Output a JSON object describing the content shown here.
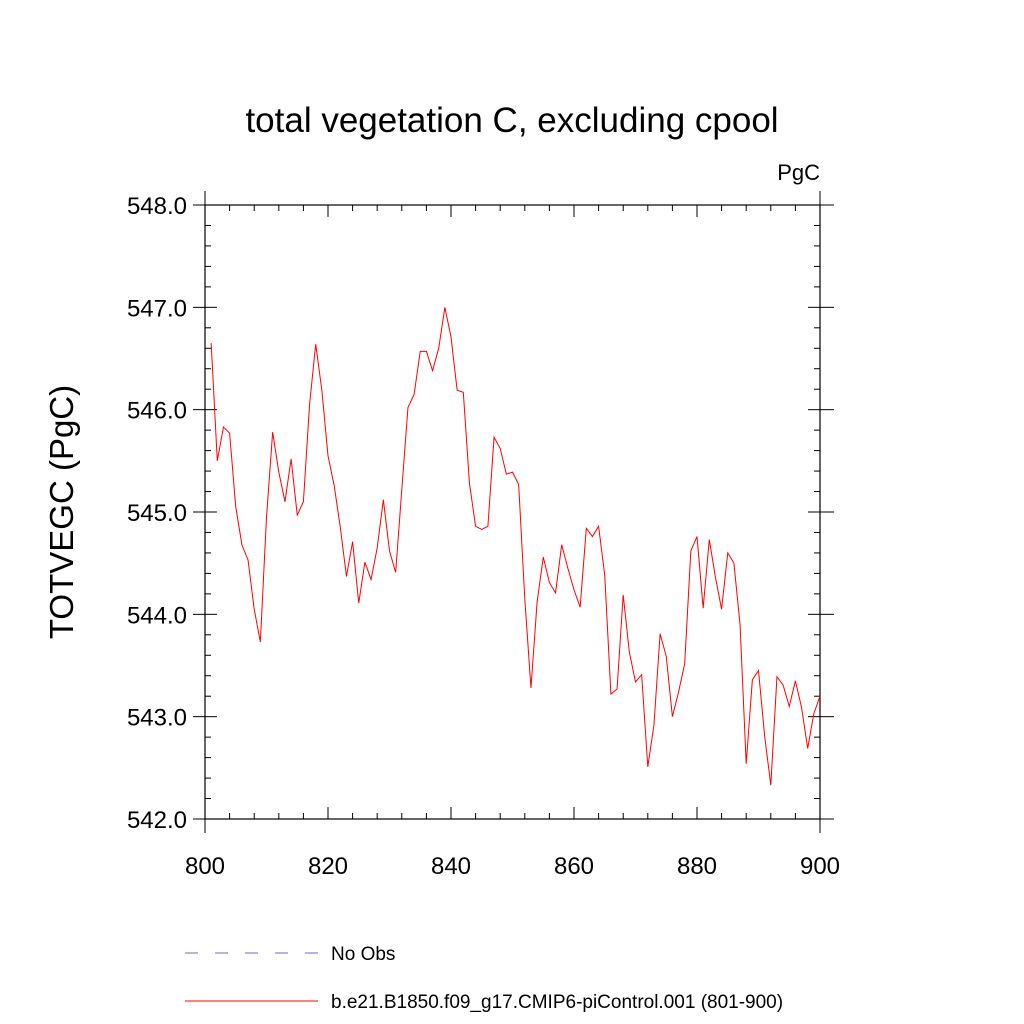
{
  "colors": {
    "series": "#ff0000",
    "legend_obs": "#6a6acd",
    "axis": "#000000"
  },
  "chart_data": {
    "type": "line",
    "title": "total vegetation C, excluding cpool",
    "units_label": "PgC",
    "xlabel": "",
    "ylabel": "TOTVEGC  (PgC)",
    "xlim": [
      800,
      900
    ],
    "ylim": [
      542.0,
      548.0
    ],
    "x_ticks": [
      800,
      820,
      840,
      860,
      880,
      900
    ],
    "x_tick_labels": [
      "800",
      "820",
      "840",
      "860",
      "880",
      "900"
    ],
    "y_ticks": [
      542,
      543,
      544,
      545,
      546,
      547,
      548
    ],
    "y_tick_labels": [
      "542.0",
      "543.0",
      "544.0",
      "545.0",
      "546.0",
      "547.0",
      "548.0"
    ],
    "grid": false,
    "legend_position": "bottom",
    "legend": [
      {
        "name": "No Obs",
        "style": "dashed"
      },
      {
        "name": "b.e21.B1850.f09_g17.CMIP6-piControl.001 (801-900)",
        "style": "solid"
      }
    ],
    "series": [
      {
        "name": "b.e21.B1850.f09_g17.CMIP6-piControl.001 (801-900)",
        "x": [
          801,
          802,
          803,
          804,
          805,
          806,
          807,
          808,
          809,
          810,
          811,
          812,
          813,
          814,
          815,
          816,
          817,
          818,
          819,
          820,
          821,
          822,
          823,
          824,
          825,
          826,
          827,
          828,
          829,
          830,
          831,
          832,
          833,
          834,
          835,
          836,
          837,
          838,
          839,
          840,
          841,
          842,
          843,
          844,
          845,
          846,
          847,
          848,
          849,
          850,
          851,
          852,
          853,
          854,
          855,
          856,
          857,
          858,
          859,
          860,
          861,
          862,
          863,
          864,
          865,
          866,
          867,
          868,
          869,
          870,
          871,
          872,
          873,
          874,
          875,
          876,
          877,
          878,
          879,
          880,
          881,
          882,
          883,
          884,
          885,
          886,
          887,
          888,
          889,
          890,
          891,
          892,
          893,
          894,
          895,
          896,
          897,
          898,
          899,
          900
        ],
        "y": [
          546.65,
          545.5,
          545.83,
          545.77,
          545.05,
          544.68,
          544.53,
          544.05,
          543.73,
          544.95,
          545.78,
          545.39,
          545.1,
          545.52,
          544.97,
          545.1,
          546.05,
          546.64,
          546.19,
          545.55,
          545.26,
          544.85,
          544.37,
          544.71,
          544.11,
          544.51,
          544.34,
          544.65,
          545.12,
          544.62,
          544.41,
          545.22,
          546.02,
          546.15,
          546.57,
          546.57,
          546.38,
          546.6,
          547.0,
          546.71,
          546.19,
          546.17,
          545.28,
          544.86,
          544.83,
          544.86,
          545.73,
          545.62,
          545.37,
          545.39,
          545.27,
          544.15,
          543.28,
          544.12,
          544.56,
          544.31,
          544.21,
          544.68,
          544.45,
          544.24,
          544.07,
          544.84,
          544.76,
          544.86,
          544.38,
          543.22,
          543.27,
          544.19,
          543.63,
          543.34,
          543.41,
          542.51,
          542.92,
          543.81,
          543.59,
          543.0,
          543.24,
          543.52,
          544.62,
          544.76,
          544.06,
          544.73,
          544.36,
          544.05,
          544.6,
          544.5,
          543.9,
          542.54,
          543.36,
          543.45,
          542.81,
          542.33,
          543.39,
          543.31,
          543.1,
          543.35,
          543.09,
          542.69,
          543.03,
          543.2
        ]
      }
    ]
  }
}
